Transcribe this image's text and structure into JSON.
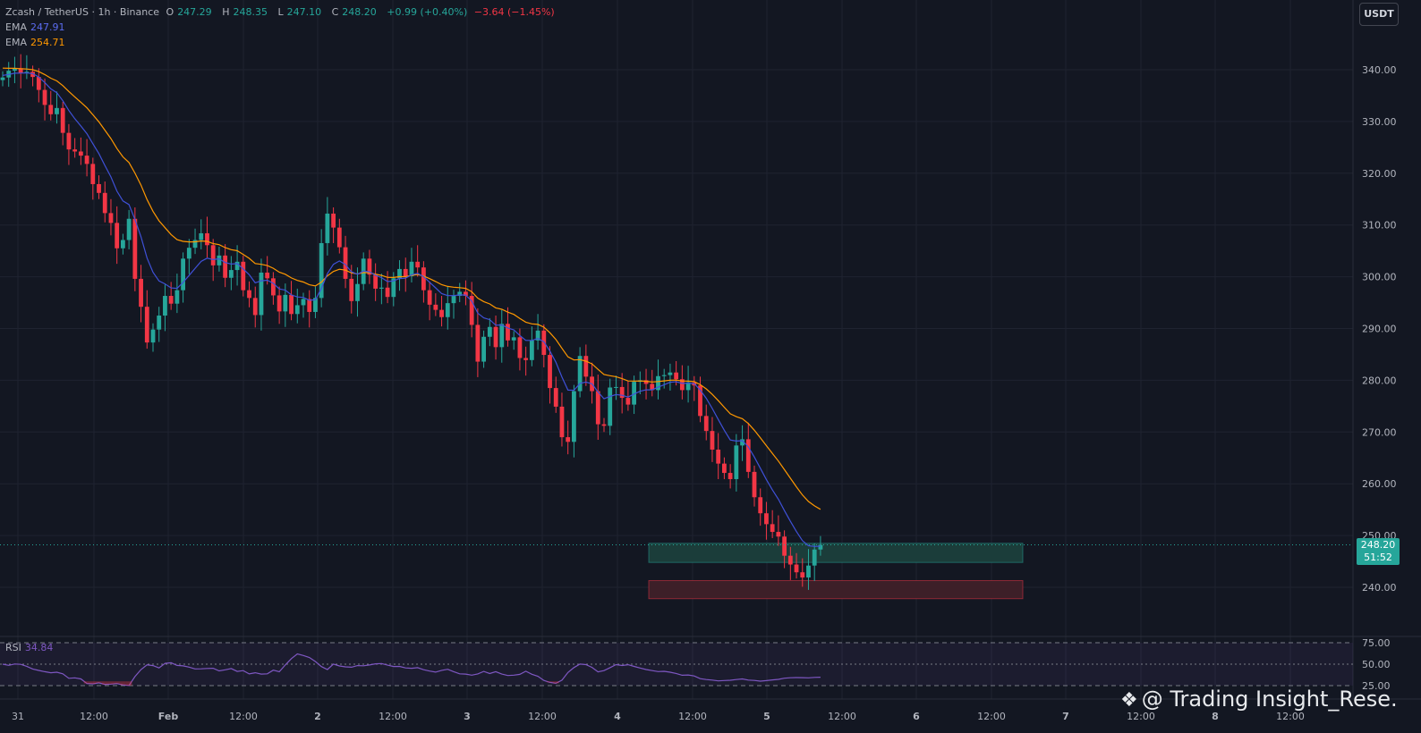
{
  "header": {
    "symbol": "Zcash / TetherUS · 1h · Binance",
    "ohlc": [
      {
        "label": "O",
        "value": "247.29"
      },
      {
        "label": "H",
        "value": "248.35"
      },
      {
        "label": "L",
        "value": "247.10"
      },
      {
        "label": "C",
        "value": "248.20"
      }
    ],
    "change": "+0.99 (+0.40%)",
    "change2": "−3.64 (−1.45%)"
  },
  "indicators": [
    {
      "name": "EMA",
      "value": "247.91",
      "color": "#5b6cf0"
    },
    {
      "name": "EMA",
      "value": "254.71",
      "color": "#ff9800"
    }
  ],
  "rsi": {
    "name": "RSI",
    "value": "34.84",
    "color": "#7e57c2"
  },
  "currency_button": "USDT",
  "price_tag": {
    "price": "248.20",
    "countdown": "51:52"
  },
  "watermark": {
    "icon": "binance-logo-icon",
    "text": "@ Trading Insight_Rese..."
  },
  "colors": {
    "up": "#26a69a",
    "down": "#f23645",
    "background": "#131722",
    "grid": "#1f2330"
  },
  "chart_data": {
    "type": "candlestick",
    "ylim": [
      232,
      350
    ],
    "y_ticks": [
      340,
      330,
      320,
      310,
      300,
      290,
      280,
      270,
      260,
      250,
      240
    ],
    "y_tick_labels": [
      "340.00",
      "330.00",
      "320.00",
      "310.00",
      "300.00",
      "290.00",
      "280.00",
      "270.00",
      "260.00",
      "250.00",
      "240.00"
    ],
    "x_ticks": [
      "31",
      "12:00",
      "Feb",
      "12:00",
      "2",
      "12:00",
      "3",
      "12:00",
      "4",
      "12:00",
      "5",
      "12:00",
      "6",
      "12:00",
      "7",
      "12:00",
      "8",
      "12:00"
    ],
    "closes": [
      338.5,
      339.8,
      340.3,
      339.4,
      339.6,
      338.6,
      336.1,
      333.2,
      331.4,
      332.6,
      327.8,
      324.6,
      324.2,
      323.4,
      321.8,
      317.9,
      316.2,
      312.3,
      310.4,
      305.5,
      307.1,
      311.2,
      299.6,
      294.2,
      287.3,
      289.8,
      292.5,
      296.3,
      294.8,
      297.4,
      303.5,
      305.6,
      307.1,
      308.4,
      306.1,
      302.2,
      304.1,
      299.8,
      301.3,
      302.9,
      297.4,
      295.9,
      292.6,
      300.8,
      299.7,
      296.4,
      293.3,
      296.5,
      292.8,
      294.5,
      295.7,
      293.2,
      295.9,
      306.5,
      312.2,
      309.5,
      305.7,
      299.6,
      295.3,
      298.6,
      303.5,
      300.4,
      297.7,
      297.9,
      296.1,
      299.7,
      301.5,
      300.1,
      302.9,
      301.8,
      297.4,
      294.6,
      293.6,
      292.2,
      294.9,
      296.3,
      297.1,
      296.3,
      290.7,
      283.6,
      288.4,
      290.3,
      286.4,
      290.9,
      287.7,
      288.3,
      284.3,
      283.9,
      287.7,
      289.6,
      284.9,
      278.5,
      274.9,
      269.0,
      268.1,
      277.9,
      284.7,
      280.7,
      277.9,
      271.5,
      271.2,
      278.6,
      278.7,
      276.6,
      275.3,
      279.7,
      280.0,
      279.3,
      278.1,
      280.8,
      281.0,
      281.5,
      280.2,
      278.1,
      279.6,
      279.0,
      273.1,
      270.2,
      266.6,
      263.9,
      262.1,
      260.9,
      267.4,
      268.6,
      262.3,
      257.4,
      254.3,
      252.2,
      250.7,
      249.8,
      246.1,
      244.4,
      242.9,
      241.9,
      244.2,
      247.3,
      248.2
    ],
    "highs_lows_note": "",
    "ema_fast": {
      "name": "EMA",
      "last": 247.91
    },
    "ema_slow": {
      "name": "EMA",
      "last": 254.71
    },
    "zones": [
      {
        "kind": "support",
        "top": 248.5,
        "bottom": 244.8,
        "color": "#1b3d3a",
        "border": "#26a69a"
      },
      {
        "kind": "resistance",
        "top": 241.3,
        "bottom": 237.8,
        "color": "#3d1f28",
        "border": "#f23645"
      }
    ],
    "rsi_levels": [
      75,
      50,
      25
    ],
    "rsi_level_labels": [
      "75.00",
      "50.00",
      "25.00"
    ],
    "rsi_values": [
      50.0,
      48.6,
      50.2,
      49.8,
      47.5,
      44.4,
      42.7,
      41.2,
      40.0,
      40.6,
      38.8,
      33.5,
      34.1,
      32.8,
      27.5,
      27.1,
      28.2,
      26.5,
      26.8,
      27.4,
      25.8,
      25.1,
      35.5,
      43.7,
      49.2,
      48.3,
      45.6,
      50.9,
      51.7,
      48.5,
      48.0,
      46.6,
      44.5,
      44.6,
      45.0,
      45.2,
      42.2,
      43.4,
      44.9,
      41.6,
      42.5,
      38.6,
      40.0,
      38.4,
      38.8,
      43.0,
      41.1,
      49.1,
      56.5,
      62.0,
      60.1,
      57.8,
      53.1,
      47.2,
      43.8,
      50.1,
      47.9,
      46.9,
      46.5,
      48.3,
      48.1,
      49.1,
      50.4,
      50.7,
      48.9,
      47.3,
      47.4,
      45.6,
      45.2,
      45.9,
      43.5,
      42.0,
      40.7,
      42.8,
      44.1,
      41.2,
      38.7,
      38.4,
      37.2,
      38.6,
      41.6,
      39.1,
      41.2,
      38.4,
      36.8,
      37.2,
      38.1,
      41.8,
      38.2,
      35.9,
      31.0,
      28.8,
      27.7,
      31.4,
      40.3,
      46.0,
      50.1,
      49.5,
      46.2,
      41.0,
      42.5,
      45.9,
      49.5,
      48.4,
      49.4,
      47.4,
      45.5,
      43.8,
      42.5,
      41.4,
      41.7,
      40.6,
      39.2,
      37.1,
      37.4,
      36.3,
      33.1,
      32.1,
      31.5,
      30.5,
      30.9,
      31.3,
      32.1,
      32.8,
      31.5,
      31.0,
      30.2,
      30.8,
      31.7,
      32.3,
      33.6,
      34.2,
      34.4,
      34.3,
      34.1,
      34.6,
      34.8
    ]
  }
}
